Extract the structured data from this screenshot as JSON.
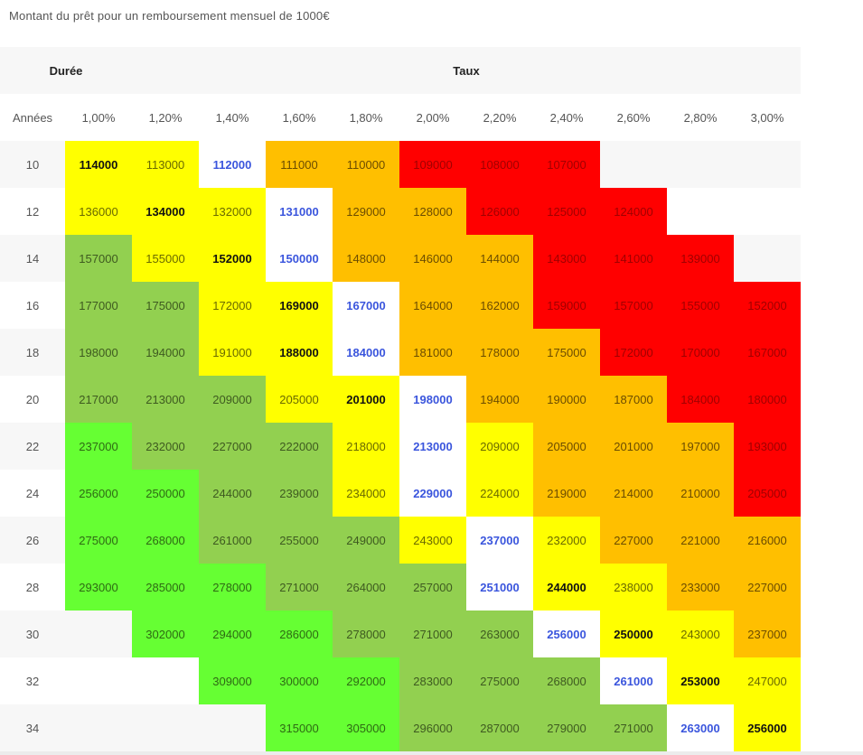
{
  "caption": "Montant du prêt pour un remboursement mensuel de 1000€",
  "header": {
    "duration_label": "Durée",
    "rate_label": "Taux",
    "years_label": "Années",
    "rates": [
      "1,00%",
      "1,20%",
      "1,40%",
      "1,60%",
      "1,80%",
      "2,00%",
      "2,20%",
      "2,40%",
      "2,60%",
      "2,80%",
      "3,00%"
    ]
  },
  "legend_colors": {
    "yellow": "#ffff00",
    "orange": "#ffbf00",
    "red": "#ff0000",
    "green": "#92d050",
    "light_green": "#66ff33",
    "blue_text": "#3a55dd"
  },
  "rows": [
    {
      "years": "10",
      "cells": [
        {
          "v": "114000",
          "c": "b"
        },
        {
          "v": "113000",
          "c": "y"
        },
        {
          "v": "112000",
          "c": "w"
        },
        {
          "v": "111000",
          "c": "o"
        },
        {
          "v": "110000",
          "c": "o"
        },
        {
          "v": "109000",
          "c": "r"
        },
        {
          "v": "108000",
          "c": "r"
        },
        {
          "v": "107000",
          "c": "r"
        },
        {
          "v": "",
          "c": "e"
        },
        {
          "v": "",
          "c": "e"
        },
        {
          "v": "",
          "c": "e"
        }
      ]
    },
    {
      "years": "12",
      "cells": [
        {
          "v": "136000",
          "c": "y"
        },
        {
          "v": "134000",
          "c": "b"
        },
        {
          "v": "132000",
          "c": "y"
        },
        {
          "v": "131000",
          "c": "w"
        },
        {
          "v": "129000",
          "c": "o"
        },
        {
          "v": "128000",
          "c": "o"
        },
        {
          "v": "126000",
          "c": "r"
        },
        {
          "v": "125000",
          "c": "r"
        },
        {
          "v": "124000",
          "c": "r"
        },
        {
          "v": "",
          "c": "e"
        },
        {
          "v": "",
          "c": "e"
        }
      ]
    },
    {
      "years": "14",
      "cells": [
        {
          "v": "157000",
          "c": "g"
        },
        {
          "v": "155000",
          "c": "y"
        },
        {
          "v": "152000",
          "c": "b"
        },
        {
          "v": "150000",
          "c": "w"
        },
        {
          "v": "148000",
          "c": "o"
        },
        {
          "v": "146000",
          "c": "o"
        },
        {
          "v": "144000",
          "c": "o"
        },
        {
          "v": "143000",
          "c": "r"
        },
        {
          "v": "141000",
          "c": "r"
        },
        {
          "v": "139000",
          "c": "r"
        },
        {
          "v": "",
          "c": "e"
        }
      ]
    },
    {
      "years": "16",
      "cells": [
        {
          "v": "177000",
          "c": "g"
        },
        {
          "v": "175000",
          "c": "g"
        },
        {
          "v": "172000",
          "c": "y"
        },
        {
          "v": "169000",
          "c": "b"
        },
        {
          "v": "167000",
          "c": "w"
        },
        {
          "v": "164000",
          "c": "o"
        },
        {
          "v": "162000",
          "c": "o"
        },
        {
          "v": "159000",
          "c": "r"
        },
        {
          "v": "157000",
          "c": "r"
        },
        {
          "v": "155000",
          "c": "r"
        },
        {
          "v": "152000",
          "c": "r"
        }
      ]
    },
    {
      "years": "18",
      "cells": [
        {
          "v": "198000",
          "c": "g"
        },
        {
          "v": "194000",
          "c": "g"
        },
        {
          "v": "191000",
          "c": "y"
        },
        {
          "v": "188000",
          "c": "b"
        },
        {
          "v": "184000",
          "c": "w"
        },
        {
          "v": "181000",
          "c": "o"
        },
        {
          "v": "178000",
          "c": "o"
        },
        {
          "v": "175000",
          "c": "o"
        },
        {
          "v": "172000",
          "c": "r"
        },
        {
          "v": "170000",
          "c": "r"
        },
        {
          "v": "167000",
          "c": "r"
        }
      ]
    },
    {
      "years": "20",
      "cells": [
        {
          "v": "217000",
          "c": "g"
        },
        {
          "v": "213000",
          "c": "g"
        },
        {
          "v": "209000",
          "c": "g"
        },
        {
          "v": "205000",
          "c": "y"
        },
        {
          "v": "201000",
          "c": "b"
        },
        {
          "v": "198000",
          "c": "w"
        },
        {
          "v": "194000",
          "c": "o"
        },
        {
          "v": "190000",
          "c": "o"
        },
        {
          "v": "187000",
          "c": "o"
        },
        {
          "v": "184000",
          "c": "r"
        },
        {
          "v": "180000",
          "c": "r"
        }
      ]
    },
    {
      "years": "22",
      "cells": [
        {
          "v": "237000",
          "c": "l"
        },
        {
          "v": "232000",
          "c": "g"
        },
        {
          "v": "227000",
          "c": "g"
        },
        {
          "v": "222000",
          "c": "g"
        },
        {
          "v": "218000",
          "c": "y"
        },
        {
          "v": "213000",
          "c": "w"
        },
        {
          "v": "209000",
          "c": "y"
        },
        {
          "v": "205000",
          "c": "o"
        },
        {
          "v": "201000",
          "c": "o"
        },
        {
          "v": "197000",
          "c": "o"
        },
        {
          "v": "193000",
          "c": "r"
        }
      ]
    },
    {
      "years": "24",
      "cells": [
        {
          "v": "256000",
          "c": "l"
        },
        {
          "v": "250000",
          "c": "l"
        },
        {
          "v": "244000",
          "c": "g"
        },
        {
          "v": "239000",
          "c": "g"
        },
        {
          "v": "234000",
          "c": "y"
        },
        {
          "v": "229000",
          "c": "w"
        },
        {
          "v": "224000",
          "c": "y"
        },
        {
          "v": "219000",
          "c": "o"
        },
        {
          "v": "214000",
          "c": "o"
        },
        {
          "v": "210000",
          "c": "o"
        },
        {
          "v": "205000",
          "c": "r"
        }
      ]
    },
    {
      "years": "26",
      "cells": [
        {
          "v": "275000",
          "c": "l"
        },
        {
          "v": "268000",
          "c": "l"
        },
        {
          "v": "261000",
          "c": "g"
        },
        {
          "v": "255000",
          "c": "g"
        },
        {
          "v": "249000",
          "c": "g"
        },
        {
          "v": "243000",
          "c": "y"
        },
        {
          "v": "237000",
          "c": "w"
        },
        {
          "v": "232000",
          "c": "y"
        },
        {
          "v": "227000",
          "c": "o"
        },
        {
          "v": "221000",
          "c": "o"
        },
        {
          "v": "216000",
          "c": "o"
        }
      ]
    },
    {
      "years": "28",
      "cells": [
        {
          "v": "293000",
          "c": "l"
        },
        {
          "v": "285000",
          "c": "l"
        },
        {
          "v": "278000",
          "c": "l"
        },
        {
          "v": "271000",
          "c": "g"
        },
        {
          "v": "264000",
          "c": "g"
        },
        {
          "v": "257000",
          "c": "g"
        },
        {
          "v": "251000",
          "c": "w"
        },
        {
          "v": "244000",
          "c": "b"
        },
        {
          "v": "238000",
          "c": "y"
        },
        {
          "v": "233000",
          "c": "o"
        },
        {
          "v": "227000",
          "c": "o"
        }
      ]
    },
    {
      "years": "30",
      "cells": [
        {
          "v": "",
          "c": "e"
        },
        {
          "v": "302000",
          "c": "l"
        },
        {
          "v": "294000",
          "c": "l"
        },
        {
          "v": "286000",
          "c": "l"
        },
        {
          "v": "278000",
          "c": "g"
        },
        {
          "v": "271000",
          "c": "g"
        },
        {
          "v": "263000",
          "c": "g"
        },
        {
          "v": "256000",
          "c": "w"
        },
        {
          "v": "250000",
          "c": "b"
        },
        {
          "v": "243000",
          "c": "y"
        },
        {
          "v": "237000",
          "c": "o"
        }
      ]
    },
    {
      "years": "32",
      "cells": [
        {
          "v": "",
          "c": "e"
        },
        {
          "v": "",
          "c": "e"
        },
        {
          "v": "309000",
          "c": "l"
        },
        {
          "v": "300000",
          "c": "l"
        },
        {
          "v": "292000",
          "c": "l"
        },
        {
          "v": "283000",
          "c": "g"
        },
        {
          "v": "275000",
          "c": "g"
        },
        {
          "v": "268000",
          "c": "g"
        },
        {
          "v": "261000",
          "c": "w"
        },
        {
          "v": "253000",
          "c": "b"
        },
        {
          "v": "247000",
          "c": "y"
        }
      ]
    },
    {
      "years": "34",
      "cells": [
        {
          "v": "",
          "c": "e"
        },
        {
          "v": "",
          "c": "e"
        },
        {
          "v": "",
          "c": "e"
        },
        {
          "v": "315000",
          "c": "l"
        },
        {
          "v": "305000",
          "c": "l"
        },
        {
          "v": "296000",
          "c": "g"
        },
        {
          "v": "287000",
          "c": "g"
        },
        {
          "v": "279000",
          "c": "g"
        },
        {
          "v": "271000",
          "c": "g"
        },
        {
          "v": "263000",
          "c": "w"
        },
        {
          "v": "256000",
          "c": "b"
        }
      ]
    }
  ]
}
